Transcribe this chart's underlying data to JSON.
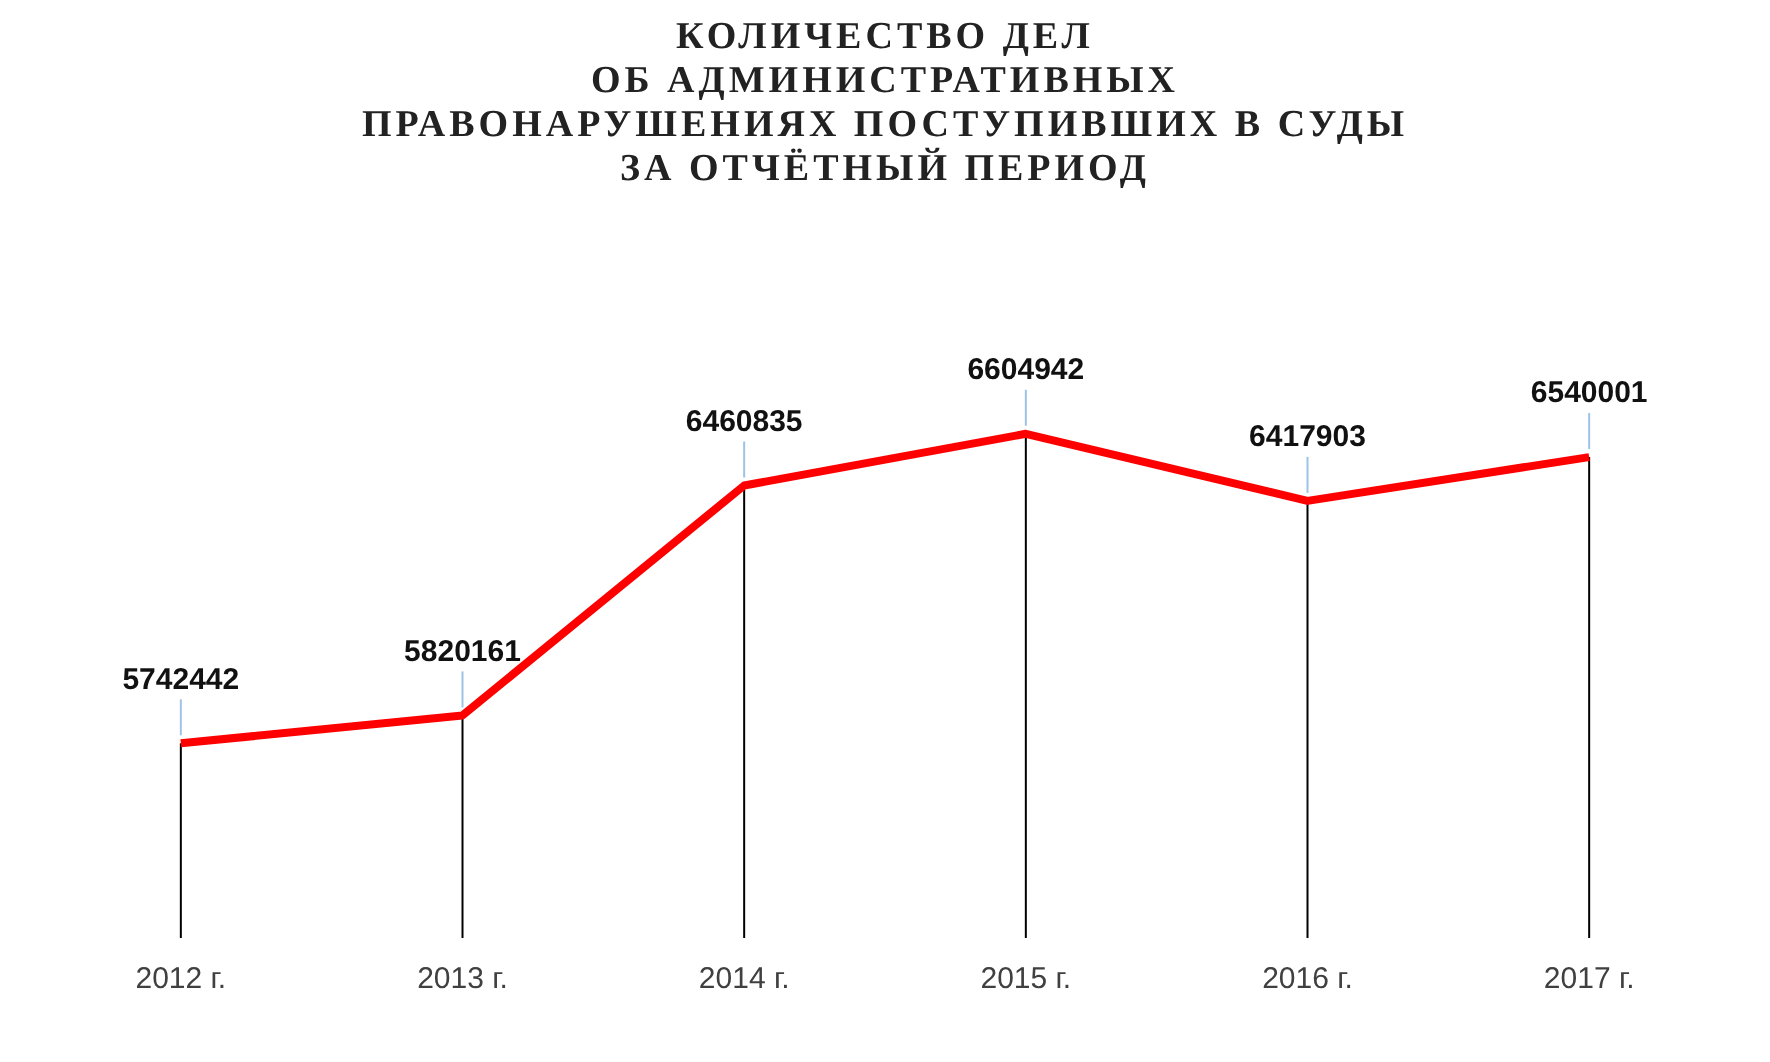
{
  "chart_data": {
    "type": "line",
    "title": "КОЛИЧЕСТВО ДЕЛ\nОБ АДМИНИСТРАТИВНЫХ\nПРАВОНАРУШЕНИЯХ ПОСТУПИВШИХ  В СУДЫ\nЗА ОТЧЁТНЫЙ  ПЕРИОД",
    "categories": [
      "2012 г.",
      "2013 г.",
      "2014 г.",
      "2015 г.",
      "2016 г.",
      "2017 г."
    ],
    "series": [
      {
        "color": "#ff0000",
        "values": [
          5742442,
          5820161,
          6460835,
          6604942,
          6417903,
          6540001
        ]
      }
    ],
    "data_labels": true,
    "grid": "x",
    "legend": false,
    "marker": "none"
  }
}
